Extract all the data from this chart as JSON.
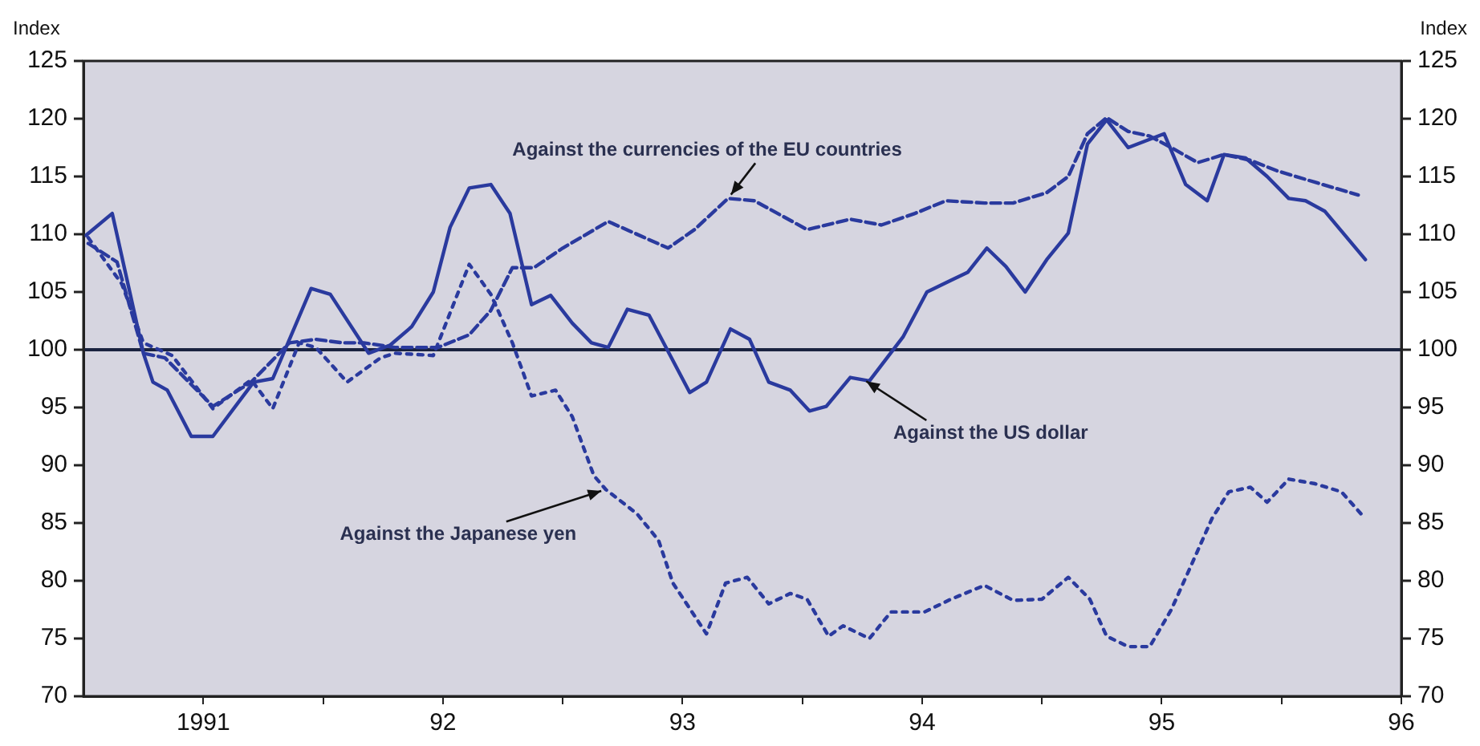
{
  "chart_data": {
    "type": "line",
    "ylabel": "Index",
    "y2label": "Index",
    "xlim": [
      1990.5,
      1996
    ],
    "xticks": [
      1991,
      {
        "value": 1991.5,
        "label": null
      },
      {
        "value": 1992,
        "label": "92"
      },
      {
        "value": 1992.5,
        "label": null
      },
      {
        "value": 1993,
        "label": "93"
      },
      {
        "value": 1993.5,
        "label": null
      },
      {
        "value": 1994,
        "label": "94"
      },
      {
        "value": 1994.5,
        "label": null
      },
      {
        "value": 1995,
        "label": "95"
      },
      {
        "value": 1995.5,
        "label": null
      },
      {
        "value": 1996,
        "label": "96"
      }
    ],
    "ylim": [
      70,
      125
    ],
    "yticks": [
      70,
      75,
      80,
      85,
      90,
      95,
      100,
      105,
      110,
      115,
      120,
      125
    ],
    "y2lim": [
      70,
      125
    ],
    "y2ticks": [
      70,
      75,
      80,
      85,
      90,
      95,
      100,
      105,
      110,
      115,
      120,
      125
    ],
    "grid": false,
    "legend": false,
    "ref_lines": [
      {
        "axis": "y",
        "value": 100,
        "color": "#1a2340"
      }
    ],
    "annotations": [
      {
        "text": "Against the currencies of the EU countries",
        "x": 1993.19,
        "y": 113.1
      },
      {
        "text": "Against the US dollar",
        "x": 1993.75,
        "y": 97.5
      },
      {
        "text": "Against the Japanese yen",
        "x": 1992.68,
        "y": 87.9
      }
    ],
    "series": [
      {
        "color": "#2a3a9e",
        "line_style": "solid",
        "x": [
          1990.51,
          1990.62,
          1990.75,
          1990.79,
          1990.85,
          1990.95,
          1991.04,
          1991.21,
          1991.29,
          1991.45,
          1991.53,
          1991.69,
          1991.78,
          1991.87,
          1991.96,
          1992.03,
          1992.11,
          1992.2,
          1992.28,
          1992.37,
          1992.45,
          1992.54,
          1992.62,
          1992.69,
          1992.77,
          1992.86,
          1993.03,
          1993.1,
          1993.2,
          1993.28,
          1993.36,
          1993.45,
          1993.53,
          1993.6,
          1993.7,
          1993.78,
          1993.92,
          1994.02,
          1994.12,
          1994.19,
          1994.27,
          1994.35,
          1994.43,
          1994.52,
          1994.61,
          1994.69,
          1994.77,
          1994.86,
          1995.01,
          1995.1,
          1995.19,
          1995.26,
          1995.35,
          1995.44,
          1995.53,
          1995.6,
          1995.68,
          1995.85
        ],
        "values": [
          109.9,
          111.8,
          99.7,
          97.2,
          96.5,
          92.5,
          92.5,
          97.2,
          97.5,
          105.3,
          104.8,
          99.7,
          100.4,
          102,
          105,
          110.6,
          114,
          114.3,
          111.8,
          103.9,
          104.7,
          102.3,
          100.6,
          100.2,
          103.5,
          103,
          96.3,
          97.2,
          101.8,
          100.9,
          97.2,
          96.5,
          94.7,
          95.1,
          97.6,
          97.3,
          101.1,
          105,
          106,
          106.7,
          108.8,
          107.2,
          105,
          107.8,
          110.1,
          117.8,
          119.9,
          117.5,
          118.7,
          114.3,
          112.9,
          116.9,
          116.6,
          115,
          113.1,
          112.9,
          112,
          107.8
        ]
      },
      {
        "color": "#2a3a9e",
        "line_style": "dashed",
        "x": [
          1990.52,
          1990.64,
          1990.75,
          1990.84,
          1991.04,
          1991.2,
          1991.36,
          1991.47,
          1991.58,
          1991.67,
          1991.8,
          1991.98,
          1992.11,
          1992.2,
          1992.29,
          1992.38,
          1992.5,
          1992.69,
          1992.94,
          1993.05,
          1993.19,
          1993.3,
          1993.52,
          1993.7,
          1993.83,
          1993.97,
          1994.1,
          1994.26,
          1994.38,
          1994.52,
          1994.61,
          1994.69,
          1994.77,
          1994.86,
          1994.95,
          1995.04,
          1995.15,
          1995.26,
          1995.37,
          1995.48,
          1995.64,
          1995.82
        ],
        "values": [
          109.2,
          107.6,
          99.7,
          99.3,
          95.1,
          97.2,
          100.6,
          100.9,
          100.6,
          100.6,
          100.2,
          100.2,
          101.3,
          103.4,
          107.1,
          107.1,
          108.8,
          111.1,
          108.8,
          110.4,
          113.1,
          112.9,
          110.4,
          111.3,
          110.8,
          111.8,
          112.9,
          112.7,
          112.7,
          113.6,
          115,
          118.7,
          120.1,
          118.9,
          118.5,
          117.5,
          116.2,
          116.9,
          116.4,
          115.5,
          114.5,
          113.4
        ]
      },
      {
        "color": "#2a3a9e",
        "line_style": "dotted",
        "x": [
          1990.52,
          1990.66,
          1990.75,
          1990.87,
          1991.04,
          1991.2,
          1991.29,
          1991.4,
          1991.47,
          1991.6,
          1991.74,
          1991.8,
          1991.96,
          1992.11,
          1992.2,
          1992.29,
          1992.37,
          1992.47,
          1992.54,
          1992.63,
          1992.68,
          1992.81,
          1992.9,
          1992.96,
          1993.1,
          1993.18,
          1993.27,
          1993.36,
          1993.45,
          1993.52,
          1993.61,
          1993.67,
          1993.78,
          1993.87,
          1994.01,
          1994.12,
          1994.26,
          1994.38,
          1994.5,
          1994.61,
          1994.7,
          1994.77,
          1994.86,
          1994.95,
          1995.04,
          1995.12,
          1995.21,
          1995.28,
          1995.37,
          1995.44,
          1995.53,
          1995.64,
          1995.75,
          1995.84
        ],
        "values": [
          109.7,
          105.7,
          100.6,
          99.5,
          94.9,
          97.4,
          94.9,
          100.6,
          100.2,
          97.2,
          99.3,
          99.7,
          99.5,
          107.4,
          104.8,
          100.6,
          96,
          96.5,
          94.2,
          89.1,
          87.9,
          85.8,
          83.5,
          79.8,
          75.4,
          79.8,
          80.3,
          78,
          78.9,
          78.4,
          75.2,
          76.1,
          75,
          77.3,
          77.3,
          78.4,
          79.6,
          78.3,
          78.4,
          80.3,
          78.4,
          75.2,
          74.3,
          74.3,
          77.5,
          81.2,
          85.4,
          87.7,
          88.1,
          86.8,
          88.8,
          88.4,
          87.7,
          85.6
        ]
      }
    ]
  }
}
